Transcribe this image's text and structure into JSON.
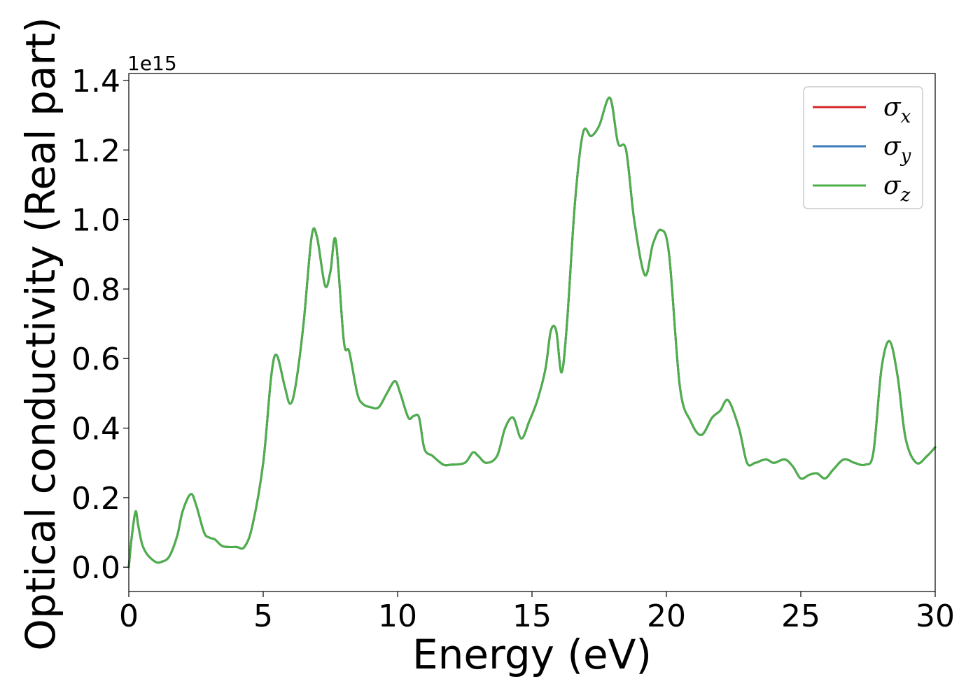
{
  "chart_data": {
    "type": "line",
    "xlabel": "Energy (eV)",
    "ylabel": "Optical conductivity (Real part)",
    "y_offset_text": "1e15",
    "y_multiplier": 1000000000000000.0,
    "xlim": [
      0,
      30
    ],
    "ylim": [
      -0.07,
      1.42
    ],
    "xticks": [
      0,
      5,
      10,
      15,
      20,
      25,
      30
    ],
    "xtick_labels": [
      "0",
      "5",
      "10",
      "15",
      "20",
      "25",
      "30"
    ],
    "yticks": [
      0.0,
      0.2,
      0.4,
      0.6,
      0.8,
      1.0,
      1.2,
      1.4
    ],
    "ytick_labels": [
      "0.0",
      "0.2",
      "0.4",
      "0.6",
      "0.8",
      "1.0",
      "1.2",
      "1.4"
    ],
    "grid": false,
    "legend_position": "top-right",
    "x": [
      0.0,
      0.1,
      0.25,
      0.35,
      0.5,
      0.7,
      1.0,
      1.2,
      1.5,
      1.8,
      2.0,
      2.3,
      2.5,
      2.8,
      3.0,
      3.2,
      3.5,
      4.0,
      4.3,
      4.6,
      5.0,
      5.3,
      5.5,
      5.8,
      6.0,
      6.2,
      6.5,
      6.8,
      7.0,
      7.3,
      7.5,
      7.7,
      8.0,
      8.2,
      8.5,
      8.7,
      9.0,
      9.3,
      9.6,
      9.9,
      10.1,
      10.4,
      10.6,
      10.8,
      11.0,
      11.3,
      11.7,
      12.0,
      12.5,
      12.8,
      13.0,
      13.3,
      13.7,
      14.0,
      14.3,
      14.6,
      14.9,
      15.2,
      15.5,
      15.7,
      15.9,
      16.1,
      16.3,
      16.6,
      16.9,
      17.2,
      17.5,
      17.9,
      18.2,
      18.5,
      18.8,
      19.2,
      19.5,
      19.8,
      20.1,
      20.5,
      20.9,
      21.3,
      21.7,
      22.0,
      22.3,
      22.7,
      23.0,
      23.3,
      23.7,
      24.0,
      24.4,
      24.7,
      25.0,
      25.3,
      25.6,
      25.9,
      26.2,
      26.6,
      27.0,
      27.4,
      27.7,
      28.0,
      28.3,
      28.6,
      28.9,
      29.3,
      29.7,
      30.0
    ],
    "series": [
      {
        "name": "σx",
        "label_main": "σ",
        "label_sub": "x",
        "color": "#d62728",
        "values": [
          0.0,
          0.08,
          0.16,
          0.12,
          0.065,
          0.035,
          0.015,
          0.015,
          0.03,
          0.09,
          0.16,
          0.21,
          0.18,
          0.1,
          0.085,
          0.08,
          0.06,
          0.058,
          0.058,
          0.12,
          0.3,
          0.55,
          0.61,
          0.52,
          0.47,
          0.52,
          0.7,
          0.95,
          0.95,
          0.81,
          0.85,
          0.94,
          0.65,
          0.62,
          0.5,
          0.47,
          0.46,
          0.46,
          0.5,
          0.535,
          0.5,
          0.43,
          0.435,
          0.43,
          0.34,
          0.32,
          0.295,
          0.295,
          0.3,
          0.33,
          0.32,
          0.3,
          0.32,
          0.4,
          0.43,
          0.37,
          0.42,
          0.48,
          0.57,
          0.68,
          0.68,
          0.56,
          0.7,
          1.05,
          1.25,
          1.24,
          1.27,
          1.35,
          1.22,
          1.2,
          1.0,
          0.84,
          0.93,
          0.97,
          0.9,
          0.52,
          0.42,
          0.38,
          0.43,
          0.45,
          0.48,
          0.4,
          0.3,
          0.3,
          0.31,
          0.3,
          0.31,
          0.29,
          0.255,
          0.265,
          0.27,
          0.255,
          0.28,
          0.31,
          0.3,
          0.295,
          0.33,
          0.57,
          0.65,
          0.55,
          0.37,
          0.3,
          0.32,
          0.345
        ]
      },
      {
        "name": "σy",
        "label_main": "σ",
        "label_sub": "y",
        "color": "#377eb8",
        "values": [
          0.0,
          0.08,
          0.16,
          0.12,
          0.065,
          0.035,
          0.015,
          0.015,
          0.03,
          0.09,
          0.16,
          0.21,
          0.18,
          0.1,
          0.085,
          0.08,
          0.06,
          0.058,
          0.058,
          0.12,
          0.3,
          0.55,
          0.61,
          0.52,
          0.47,
          0.52,
          0.7,
          0.95,
          0.95,
          0.81,
          0.85,
          0.94,
          0.65,
          0.62,
          0.5,
          0.47,
          0.46,
          0.46,
          0.5,
          0.535,
          0.5,
          0.43,
          0.435,
          0.43,
          0.34,
          0.32,
          0.295,
          0.295,
          0.3,
          0.33,
          0.32,
          0.3,
          0.32,
          0.4,
          0.43,
          0.37,
          0.42,
          0.48,
          0.57,
          0.68,
          0.68,
          0.56,
          0.7,
          1.05,
          1.25,
          1.24,
          1.27,
          1.35,
          1.22,
          1.2,
          1.0,
          0.84,
          0.93,
          0.97,
          0.9,
          0.52,
          0.42,
          0.38,
          0.43,
          0.45,
          0.48,
          0.4,
          0.3,
          0.3,
          0.31,
          0.3,
          0.31,
          0.29,
          0.255,
          0.265,
          0.27,
          0.255,
          0.28,
          0.31,
          0.3,
          0.295,
          0.33,
          0.57,
          0.65,
          0.55,
          0.37,
          0.3,
          0.32,
          0.345
        ]
      },
      {
        "name": "σz",
        "label_main": "σ",
        "label_sub": "z",
        "color": "#4daf4a",
        "values": [
          0.0,
          0.08,
          0.16,
          0.12,
          0.065,
          0.035,
          0.015,
          0.015,
          0.03,
          0.09,
          0.16,
          0.21,
          0.18,
          0.1,
          0.085,
          0.08,
          0.06,
          0.058,
          0.058,
          0.12,
          0.3,
          0.55,
          0.61,
          0.52,
          0.47,
          0.52,
          0.7,
          0.95,
          0.95,
          0.81,
          0.85,
          0.94,
          0.65,
          0.62,
          0.5,
          0.47,
          0.46,
          0.46,
          0.5,
          0.535,
          0.5,
          0.43,
          0.435,
          0.43,
          0.34,
          0.32,
          0.295,
          0.295,
          0.3,
          0.33,
          0.32,
          0.3,
          0.32,
          0.4,
          0.43,
          0.37,
          0.42,
          0.48,
          0.57,
          0.68,
          0.68,
          0.56,
          0.7,
          1.05,
          1.25,
          1.24,
          1.27,
          1.35,
          1.22,
          1.2,
          1.0,
          0.84,
          0.93,
          0.97,
          0.9,
          0.52,
          0.42,
          0.38,
          0.43,
          0.45,
          0.48,
          0.4,
          0.3,
          0.3,
          0.31,
          0.3,
          0.31,
          0.29,
          0.255,
          0.265,
          0.27,
          0.255,
          0.28,
          0.31,
          0.3,
          0.295,
          0.33,
          0.57,
          0.65,
          0.55,
          0.37,
          0.3,
          0.32,
          0.345
        ]
      }
    ]
  }
}
